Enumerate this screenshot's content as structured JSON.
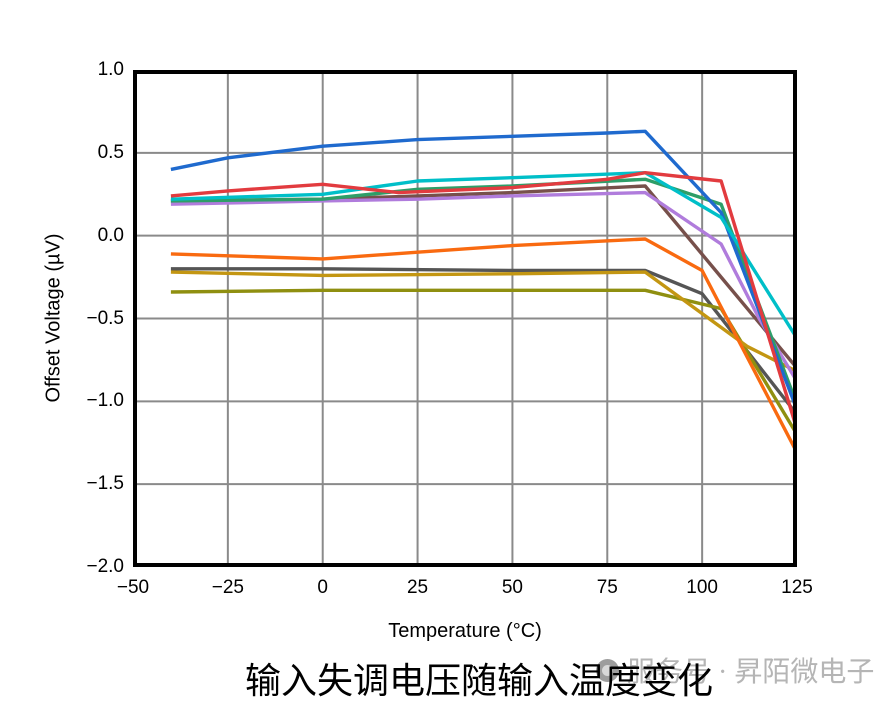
{
  "chart_data": {
    "type": "line",
    "title": "输入失调电压随输入温度变化",
    "xlabel": "Temperature (°C)",
    "ylabel": "Offset Voltage (µV)",
    "xlim": [
      -50,
      125
    ],
    "ylim": [
      -2.0,
      1.0
    ],
    "grid": true,
    "legend_position": "none",
    "grid_color": "#8a8a8a",
    "frame_color": "#000000",
    "x_ticks": [
      {
        "v": -50,
        "label": "−50"
      },
      {
        "v": -25,
        "label": "−25"
      },
      {
        "v": 0,
        "label": "0"
      },
      {
        "v": 25,
        "label": "25"
      },
      {
        "v": 50,
        "label": "50"
      },
      {
        "v": 75,
        "label": "75"
      },
      {
        "v": 100,
        "label": "100"
      },
      {
        "v": 125,
        "label": "125"
      }
    ],
    "y_ticks": [
      {
        "v": 1.0,
        "label": "1.0"
      },
      {
        "v": 0.5,
        "label": "0.5"
      },
      {
        "v": 0.0,
        "label": "0.0"
      },
      {
        "v": -0.5,
        "label": "−0.5"
      },
      {
        "v": -1.0,
        "label": "−1.0"
      },
      {
        "v": -1.5,
        "label": "−1.5"
      },
      {
        "v": -2.0,
        "label": "−2.0"
      }
    ],
    "series": [
      {
        "color": "#555555",
        "points": [
          [
            -40,
            -0.2
          ],
          [
            0,
            -0.2
          ],
          [
            50,
            -0.21
          ],
          [
            85,
            -0.21
          ],
          [
            100,
            -0.35
          ],
          [
            125,
            -1.08
          ]
        ]
      },
      {
        "color": "#8F8F10",
        "points": [
          [
            -40,
            -0.34
          ],
          [
            0,
            -0.33
          ],
          [
            50,
            -0.33
          ],
          [
            85,
            -0.33
          ],
          [
            105,
            -0.44
          ],
          [
            125,
            -1.2
          ]
        ]
      },
      {
        "color": "#C39612",
        "points": [
          [
            -40,
            -0.22
          ],
          [
            0,
            -0.24
          ],
          [
            50,
            -0.23
          ],
          [
            85,
            -0.22
          ],
          [
            112,
            -0.67
          ],
          [
            125,
            -0.82
          ]
        ]
      },
      {
        "color": "#F96A10",
        "points": [
          [
            -40,
            -0.11
          ],
          [
            0,
            -0.14
          ],
          [
            25,
            -0.1
          ],
          [
            50,
            -0.06
          ],
          [
            85,
            -0.02
          ],
          [
            100,
            -0.21
          ],
          [
            125,
            -1.31
          ]
        ]
      },
      {
        "color": "#77504B",
        "points": [
          [
            -40,
            0.21
          ],
          [
            0,
            0.22
          ],
          [
            25,
            0.24
          ],
          [
            50,
            0.26
          ],
          [
            85,
            0.3
          ],
          [
            105,
            -0.25
          ],
          [
            125,
            -0.8
          ]
        ]
      },
      {
        "color": "#B07CDC",
        "points": [
          [
            -40,
            0.19
          ],
          [
            0,
            0.21
          ],
          [
            25,
            0.22
          ],
          [
            50,
            0.24
          ],
          [
            85,
            0.26
          ],
          [
            105,
            -0.05
          ],
          [
            115,
            -0.5
          ],
          [
            125,
            -0.88
          ]
        ]
      },
      {
        "color": "#2E9E68",
        "points": [
          [
            -40,
            0.21
          ],
          [
            0,
            0.22
          ],
          [
            25,
            0.28
          ],
          [
            50,
            0.3
          ],
          [
            85,
            0.34
          ],
          [
            105,
            0.19
          ],
          [
            125,
            -1.02
          ]
        ]
      },
      {
        "color": "#1F6ACE",
        "points": [
          [
            -40,
            0.4
          ],
          [
            -25,
            0.47
          ],
          [
            0,
            0.54
          ],
          [
            25,
            0.58
          ],
          [
            50,
            0.6
          ],
          [
            75,
            0.62
          ],
          [
            85,
            0.63
          ],
          [
            105,
            0.14
          ],
          [
            125,
            -1.05
          ]
        ]
      },
      {
        "color": "#00BFC8",
        "points": [
          [
            -40,
            0.22
          ],
          [
            0,
            0.25
          ],
          [
            25,
            0.33
          ],
          [
            50,
            0.35
          ],
          [
            85,
            0.38
          ],
          [
            105,
            0.11
          ],
          [
            125,
            -0.62
          ]
        ]
      },
      {
        "color": "#E23B3F",
        "points": [
          [
            -40,
            0.24
          ],
          [
            -25,
            0.27
          ],
          [
            0,
            0.31
          ],
          [
            20,
            0.26
          ],
          [
            50,
            0.29
          ],
          [
            75,
            0.34
          ],
          [
            85,
            0.38
          ],
          [
            105,
            0.33
          ],
          [
            125,
            -1.17
          ]
        ]
      }
    ]
  },
  "watermark": {
    "icon": "badge-circle-icon",
    "text": "服务号 · 昇陌微电子"
  }
}
